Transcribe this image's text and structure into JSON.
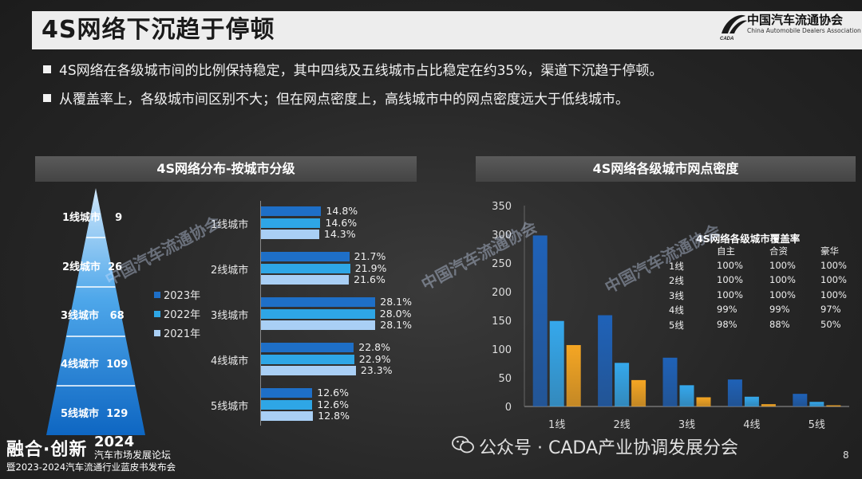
{
  "slide": {
    "title": "4S网络下沉趋于停顿",
    "logo_cn": "中国汽车流通协会",
    "logo_en": "China Automobile Dealers Association",
    "logo_mark": "CADA",
    "page_number": "8"
  },
  "bullets": [
    "4S网络在各级城市间的比例保持稳定，其中四线及五线城市占比稳定在约35%，渠道下沉趋于停顿。",
    "从覆盖率上，各级城市间区别不大；但在网点密度上，高线城市中的网点密度远大于低线城市。"
  ],
  "left_panel": {
    "header": "4S网络分布-按城市分级"
  },
  "right_panel": {
    "header": "4S网络各级城市网点密度"
  },
  "pyramid": [
    {
      "label": "1线城市",
      "value": "9"
    },
    {
      "label": "2线城市",
      "value": "26"
    },
    {
      "label": "3线城市",
      "value": "68"
    },
    {
      "label": "4线城市",
      "value": "109"
    },
    {
      "label": "5线城市",
      "value": "129"
    }
  ],
  "coverage_table": {
    "title": "4S网络各级城市覆盖率",
    "columns": [
      "",
      "自主",
      "合资",
      "豪华"
    ],
    "rows": [
      [
        "1线",
        "100%",
        "100%",
        "100%"
      ],
      [
        "2线",
        "100%",
        "100%",
        "100%"
      ],
      [
        "3线",
        "100%",
        "100%",
        "100%"
      ],
      [
        "4线",
        "99%",
        "99%",
        "97%"
      ],
      [
        "5线",
        "98%",
        "88%",
        "50%"
      ]
    ]
  },
  "footer": {
    "brand": "融合·创新",
    "year": "2024",
    "forum": "汽车市场发展论坛",
    "sub": "暨2023-2024汽车流通行业蓝皮书发布会",
    "wechat": "公众号 · CADA产业协调发展分会",
    "watermark": "中国汽车流通协会"
  },
  "colors": {
    "c2023": "#1e6fc7",
    "c2022": "#2ea6e6",
    "c2021": "#a9cff5",
    "orange": "#f5a623",
    "blue_dark": "#1f62b8",
    "blue_light": "#35a8ec"
  },
  "chart_data": [
    {
      "type": "bar",
      "orientation": "horizontal",
      "categories": [
        "1线城市",
        "2线城市",
        "3线城市",
        "4线城市",
        "5线城市"
      ],
      "series": [
        {
          "name": "2023年",
          "values": [
            14.8,
            21.7,
            28.1,
            22.8,
            12.6
          ],
          "labels": [
            "14.8%",
            "21.7%",
            "28.1%",
            "22.8%",
            "12.6%"
          ]
        },
        {
          "name": "2022年",
          "values": [
            14.6,
            21.9,
            28.0,
            22.9,
            12.6
          ],
          "labels": [
            "14.6%",
            "21.9%",
            "28.0%",
            "22.9%",
            "12.6%"
          ]
        },
        {
          "name": "2021年",
          "values": [
            14.3,
            21.6,
            28.1,
            23.3,
            12.8
          ],
          "labels": [
            "14.3%",
            "21.6%",
            "28.1%",
            "23.3%",
            "12.8%"
          ]
        }
      ],
      "legend_position": "left"
    },
    {
      "type": "bar",
      "categories": [
        "1线",
        "2线",
        "3线",
        "4线",
        "5线"
      ],
      "series": [
        {
          "values": [
            298,
            159,
            85,
            47,
            22
          ]
        },
        {
          "values": [
            149,
            76,
            37,
            17,
            8
          ]
        },
        {
          "values": [
            107,
            46,
            16,
            4,
            2
          ]
        }
      ],
      "ylim": [
        0,
        350
      ],
      "yticks": [
        "0",
        "50",
        "100",
        "150",
        "200",
        "250",
        "300",
        "350"
      ],
      "grid": false
    }
  ]
}
